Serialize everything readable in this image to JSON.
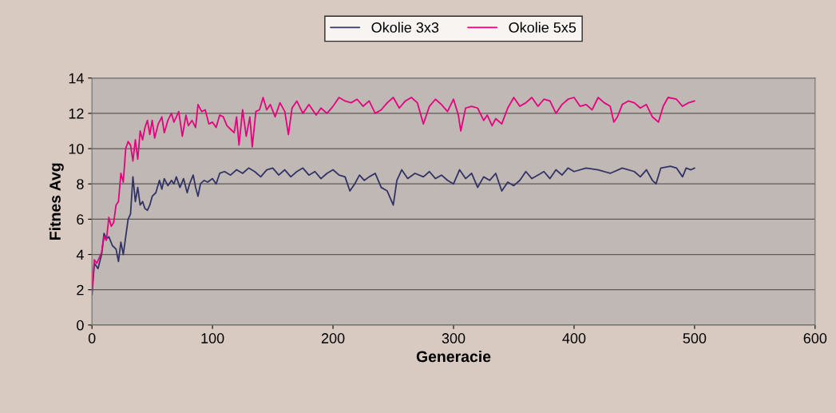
{
  "chart_data": {
    "type": "line",
    "xlabel": "Generacie",
    "ylabel": "Fitnes Avg",
    "xlim": [
      0,
      600
    ],
    "xticks": [
      0,
      100,
      200,
      300,
      400,
      500,
      600
    ],
    "ylim": [
      0,
      14
    ],
    "yticks": [
      0,
      2,
      4,
      6,
      8,
      10,
      12,
      14
    ],
    "grid": "y",
    "legend": "top",
    "marker": "none",
    "line_style": "solid",
    "series": [
      {
        "name": "Okolie 3x3",
        "color": "#333366",
        "x": [
          0,
          2,
          5,
          8,
          10,
          12,
          14,
          17,
          20,
          22,
          24,
          26,
          28,
          30,
          32,
          34,
          36,
          38,
          40,
          42,
          44,
          46,
          48,
          50,
          53,
          56,
          58,
          60,
          63,
          66,
          68,
          70,
          73,
          76,
          79,
          81,
          84,
          86,
          88,
          90,
          93,
          96,
          100,
          103,
          106,
          110,
          115,
          120,
          125,
          130,
          135,
          140,
          145,
          150,
          155,
          160,
          165,
          170,
          175,
          180,
          185,
          190,
          195,
          200,
          205,
          210,
          214,
          218,
          222,
          226,
          230,
          235,
          240,
          245,
          250,
          253,
          257,
          262,
          268,
          275,
          280,
          285,
          290,
          295,
          300,
          305,
          310,
          315,
          320,
          325,
          330,
          335,
          340,
          345,
          350,
          355,
          360,
          365,
          370,
          375,
          380,
          385,
          390,
          395,
          400,
          410,
          420,
          430,
          440,
          450,
          455,
          460,
          465,
          468,
          472,
          480,
          485,
          490,
          493,
          497,
          500
        ],
        "values": [
          1.7,
          3.5,
          3.2,
          4.0,
          5.2,
          4.9,
          5.0,
          4.5,
          4.3,
          3.6,
          4.7,
          4.0,
          5.0,
          6.0,
          6.3,
          8.4,
          7.0,
          7.8,
          6.8,
          7.0,
          6.6,
          6.5,
          6.8,
          7.3,
          7.5,
          8.2,
          7.7,
          8.3,
          7.9,
          8.2,
          8.0,
          8.4,
          7.8,
          8.3,
          7.5,
          8.0,
          8.5,
          7.8,
          7.3,
          8.0,
          8.2,
          8.1,
          8.3,
          8.0,
          8.6,
          8.7,
          8.5,
          8.8,
          8.6,
          8.9,
          8.7,
          8.4,
          8.8,
          8.9,
          8.5,
          8.8,
          8.4,
          8.7,
          8.9,
          8.5,
          8.7,
          8.3,
          8.6,
          8.8,
          8.5,
          8.4,
          7.6,
          8.0,
          8.5,
          8.2,
          8.4,
          8.6,
          7.8,
          7.6,
          6.8,
          8.2,
          8.8,
          8.3,
          8.6,
          8.4,
          8.7,
          8.3,
          8.5,
          8.2,
          8.0,
          8.8,
          8.3,
          8.6,
          7.8,
          8.4,
          8.2,
          8.6,
          7.6,
          8.1,
          7.9,
          8.2,
          8.7,
          8.3,
          8.5,
          8.7,
          8.3,
          8.8,
          8.5,
          8.9,
          8.7,
          8.9,
          8.8,
          8.6,
          8.9,
          8.7,
          8.4,
          8.8,
          8.2,
          8.0,
          8.9,
          9.0,
          8.9,
          8.4,
          8.9,
          8.8,
          8.9
        ]
      },
      {
        "name": "Okolie 5x5",
        "color": "#e6007e",
        "x": [
          0,
          2,
          4,
          6,
          8,
          10,
          12,
          14,
          16,
          18,
          20,
          22,
          24,
          26,
          28,
          30,
          32,
          34,
          36,
          38,
          40,
          42,
          44,
          46,
          48,
          50,
          52,
          55,
          58,
          60,
          63,
          66,
          68,
          70,
          72,
          75,
          78,
          80,
          83,
          86,
          88,
          91,
          94,
          97,
          100,
          103,
          106,
          109,
          112,
          115,
          118,
          120,
          122,
          125,
          128,
          131,
          133,
          136,
          139,
          142,
          145,
          148,
          152,
          156,
          160,
          163,
          166,
          170,
          175,
          180,
          186,
          190,
          195,
          200,
          205,
          210,
          215,
          220,
          225,
          230,
          235,
          240,
          245,
          250,
          255,
          260,
          265,
          270,
          275,
          280,
          285,
          290,
          295,
          300,
          304,
          306,
          310,
          315,
          320,
          325,
          328,
          332,
          335,
          340,
          345,
          350,
          355,
          360,
          365,
          370,
          375,
          380,
          385,
          390,
          395,
          400,
          405,
          410,
          415,
          420,
          425,
          430,
          433,
          436,
          440,
          445,
          450,
          455,
          460,
          465,
          470,
          474,
          478,
          485,
          490,
          495,
          500
        ],
        "values": [
          1.9,
          3.7,
          3.5,
          3.8,
          4.1,
          5.0,
          4.8,
          6.1,
          5.6,
          5.8,
          6.8,
          7.0,
          8.6,
          8.1,
          10.0,
          10.4,
          10.2,
          9.3,
          10.5,
          9.4,
          11.0,
          10.5,
          11.2,
          11.6,
          10.8,
          11.6,
          10.6,
          11.4,
          11.8,
          10.9,
          11.6,
          12.0,
          11.5,
          11.8,
          12.1,
          10.7,
          11.9,
          11.3,
          11.6,
          11.2,
          12.5,
          12.1,
          12.2,
          11.4,
          11.5,
          11.2,
          11.9,
          11.8,
          11.3,
          11.1,
          10.9,
          11.8,
          10.2,
          12.2,
          10.7,
          11.8,
          10.1,
          12.1,
          12.2,
          12.9,
          12.2,
          12.5,
          11.8,
          12.6,
          12.1,
          10.8,
          12.3,
          12.7,
          12.0,
          12.5,
          11.9,
          12.3,
          12.0,
          12.4,
          12.9,
          12.7,
          12.6,
          12.8,
          12.4,
          12.7,
          12.0,
          12.2,
          12.6,
          12.9,
          12.3,
          12.7,
          12.9,
          12.6,
          11.4,
          12.4,
          12.8,
          12.5,
          12.1,
          12.8,
          11.9,
          11.0,
          12.3,
          12.4,
          12.3,
          11.6,
          11.9,
          11.3,
          11.7,
          11.4,
          12.3,
          12.9,
          12.4,
          12.6,
          12.9,
          12.4,
          12.8,
          12.7,
          12.0,
          12.5,
          12.8,
          12.9,
          12.4,
          12.5,
          12.2,
          12.9,
          12.6,
          12.4,
          11.5,
          11.8,
          12.5,
          12.7,
          12.6,
          12.3,
          12.5,
          11.8,
          11.5,
          12.4,
          12.9,
          12.8,
          12.4,
          12.6,
          12.7
        ]
      }
    ]
  }
}
